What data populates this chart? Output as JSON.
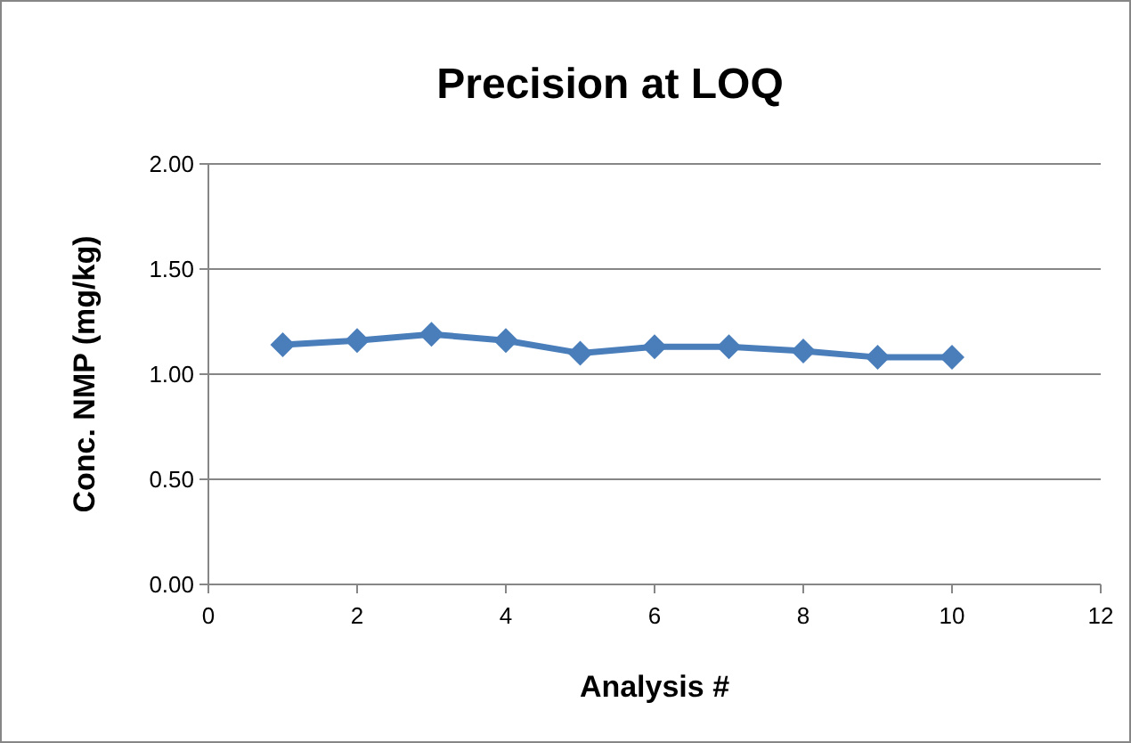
{
  "chart_data": {
    "type": "line",
    "title": "Precision at LOQ",
    "xlabel": "Analysis #",
    "ylabel": "Conc. NMP (mg/kg)",
    "x": [
      1,
      2,
      3,
      4,
      5,
      6,
      7,
      8,
      9,
      10
    ],
    "series": [
      {
        "color": "#4a7ebb",
        "values": [
          1.14,
          1.16,
          1.19,
          1.16,
          1.1,
          1.13,
          1.13,
          1.11,
          1.08,
          1.08
        ]
      }
    ],
    "xlim": [
      0,
      12
    ],
    "xticks": [
      0,
      2,
      4,
      6,
      8,
      10,
      12
    ],
    "ylim": [
      0,
      2
    ],
    "yticks": [
      {
        "value": 0,
        "label": "0.00"
      },
      {
        "value": 0.5,
        "label": "0.50"
      },
      {
        "value": 1,
        "label": "1.00"
      },
      {
        "value": 1.5,
        "label": "1.50"
      },
      {
        "value": 2,
        "label": "2.00"
      }
    ],
    "grid": "y",
    "marker": "diamond",
    "line_style": "solid"
  }
}
